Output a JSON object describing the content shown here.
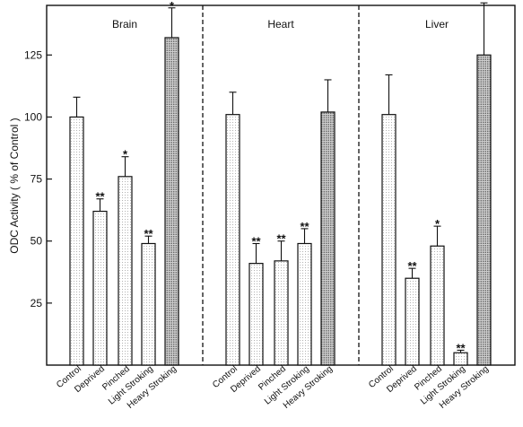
{
  "chart_data": {
    "type": "bar",
    "ylabel": "ODC Activity ( % of Control )",
    "ylim": [
      0,
      145
    ],
    "yticks": [
      25,
      50,
      75,
      100,
      125
    ],
    "categories": [
      "Control",
      "Deprived",
      "Pinched",
      "Light Stroking",
      "Heavy Stroking"
    ],
    "patterns": [
      "dotted",
      "dotted",
      "dotted",
      "dotted",
      "stippled"
    ],
    "panels": [
      {
        "title": "Brain",
        "values": [
          100,
          62,
          76,
          49,
          132
        ],
        "errors": [
          8,
          5,
          8,
          3,
          12
        ],
        "significance": [
          "",
          "**",
          "*",
          "**",
          "*"
        ]
      },
      {
        "title": "Heart",
        "values": [
          101,
          41,
          42,
          49,
          102
        ],
        "errors": [
          9,
          8,
          8,
          6,
          13
        ],
        "significance": [
          "",
          "**",
          "**",
          "**",
          ""
        ]
      },
      {
        "title": "Liver",
        "values": [
          101,
          35,
          48,
          5,
          125
        ],
        "errors": [
          16,
          4,
          8,
          1,
          21
        ],
        "significance": [
          "",
          "**",
          "*",
          "**",
          ""
        ]
      }
    ]
  }
}
